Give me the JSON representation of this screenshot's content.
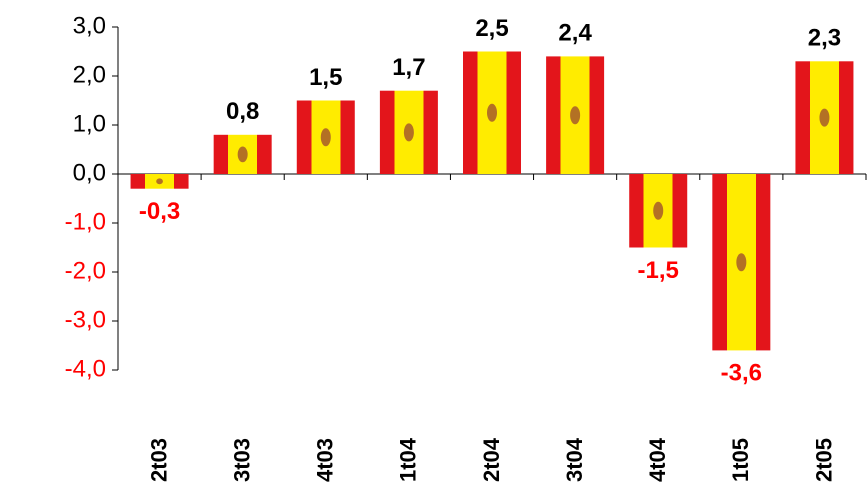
{
  "chart_data": {
    "type": "bar",
    "categories": [
      "2t03",
      "3t03",
      "4t03",
      "1t04",
      "2t04",
      "3t04",
      "4t04",
      "1t05",
      "2t05"
    ],
    "values": [
      -0.3,
      0.8,
      1.5,
      1.7,
      2.5,
      2.4,
      -1.5,
      -3.6,
      2.3
    ],
    "value_labels": [
      "-0,3",
      "0,8",
      "1,5",
      "1,7",
      "2,5",
      "2,4",
      "-1,5",
      "-3,6",
      "2,3"
    ],
    "colors": {
      "stripe": "#e3151b",
      "middle": "#ffec00",
      "emblem": "#a0522d"
    },
    "positive_label_color": "#000000",
    "negative_label_color": "#ff0000",
    "ylim": [
      -4,
      3
    ],
    "yticks": [
      {
        "value": -4,
        "label": "-4,0"
      },
      {
        "value": -3,
        "label": "-3,0"
      },
      {
        "value": -2,
        "label": "-2,0"
      },
      {
        "value": -1,
        "label": "-1,0"
      },
      {
        "value": 0,
        "label": "0,0"
      },
      {
        "value": 1,
        "label": "1,0"
      },
      {
        "value": 2,
        "label": "2,0"
      },
      {
        "value": 3,
        "label": "3,0"
      }
    ],
    "grid": false
  }
}
